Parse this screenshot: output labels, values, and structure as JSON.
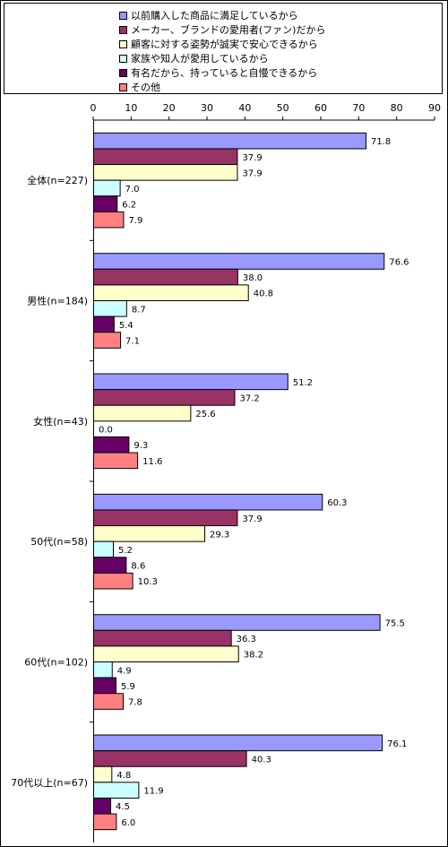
{
  "chart_data": {
    "type": "bar",
    "orientation": "horizontal",
    "title": "",
    "xlim": [
      0,
      90
    ],
    "xticks": [
      "0",
      "10",
      "20",
      "30",
      "40",
      "50",
      "60",
      "70",
      "80",
      "90"
    ],
    "grid": false,
    "legend_position": "top",
    "categories": [
      "全体(n=227)",
      "男性(n=184)",
      "女性(n=43)",
      "50代(n=58)",
      "60代(n=102)",
      "70代以上(n=67)"
    ],
    "series": [
      {
        "name": "以前購入した商品に満足しているから",
        "color": "#9999ff",
        "values": [
          71.8,
          76.6,
          51.2,
          60.3,
          75.5,
          76.1
        ],
        "labels": [
          "71.8",
          "76.6",
          "51.2",
          "60.3",
          "75.5",
          "76.1"
        ]
      },
      {
        "name": "メーカー、ブランドの愛用者(ファン)だから",
        "color": "#993366",
        "values": [
          37.9,
          38.0,
          37.2,
          37.9,
          36.3,
          40.3
        ],
        "labels": [
          "37.9",
          "38.0",
          "37.2",
          "37.9",
          "36.3",
          "40.3"
        ]
      },
      {
        "name": "顧客に対する姿勢が誠実で安心できるから",
        "color": "#ffffcc",
        "values": [
          37.9,
          40.8,
          25.6,
          29.3,
          38.2,
          4.8
        ],
        "labels": [
          "37.9",
          "40.8",
          "25.6",
          "29.3",
          "38.2",
          "4.8"
        ]
      },
      {
        "name": "家族や知人が愛用しているから",
        "color": "#ccffff",
        "values": [
          7.0,
          8.7,
          0.0,
          5.2,
          4.9,
          11.9
        ],
        "labels": [
          "7.0",
          "8.7",
          "0.0",
          "5.2",
          "4.9",
          "11.9"
        ]
      },
      {
        "name": "有名だから、持っていると自慢できるから",
        "color": "#660066",
        "values": [
          6.2,
          5.4,
          9.3,
          8.6,
          5.9,
          4.5
        ],
        "labels": [
          "6.2",
          "5.4",
          "9.3",
          "8.6",
          "5.9",
          "4.5"
        ]
      },
      {
        "name": "その他",
        "color": "#ff8080",
        "values": [
          7.9,
          7.1,
          11.6,
          10.3,
          7.8,
          6.0
        ],
        "labels": [
          "7.9",
          "7.1",
          "11.6",
          "10.3",
          "7.8",
          "6.0"
        ]
      }
    ]
  }
}
